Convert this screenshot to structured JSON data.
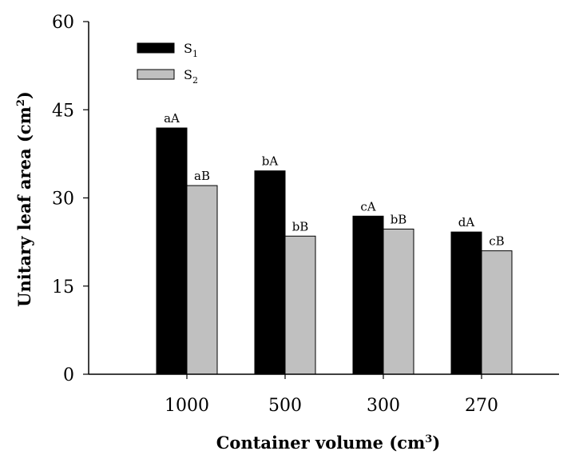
{
  "chart_data": {
    "type": "bar",
    "categories": [
      "1000",
      "500",
      "300",
      "270"
    ],
    "series": [
      {
        "name": "S1",
        "legend_base": "S",
        "legend_sub": "1",
        "color": "#000000",
        "values": [
          41.9,
          34.6,
          26.9,
          24.2
        ],
        "labels": [
          "aA",
          "bA",
          "cA",
          "dA"
        ]
      },
      {
        "name": "S2",
        "legend_base": "S",
        "legend_sub": "2",
        "color": "#c0c0c0",
        "values": [
          32.1,
          23.5,
          24.7,
          21.0
        ],
        "labels": [
          "aB",
          "bB",
          "bB",
          "cB"
        ]
      }
    ],
    "ylim": [
      0,
      60
    ],
    "yticks": [
      0,
      15,
      30,
      45,
      60
    ],
    "ylabel": {
      "text": "Unitary leaf area (cm",
      "sup": "2",
      "close": ")"
    },
    "xlabel": {
      "text": "Container volume (cm",
      "sup": "3",
      "close": ")"
    },
    "legend": "top-left",
    "grid": false
  }
}
